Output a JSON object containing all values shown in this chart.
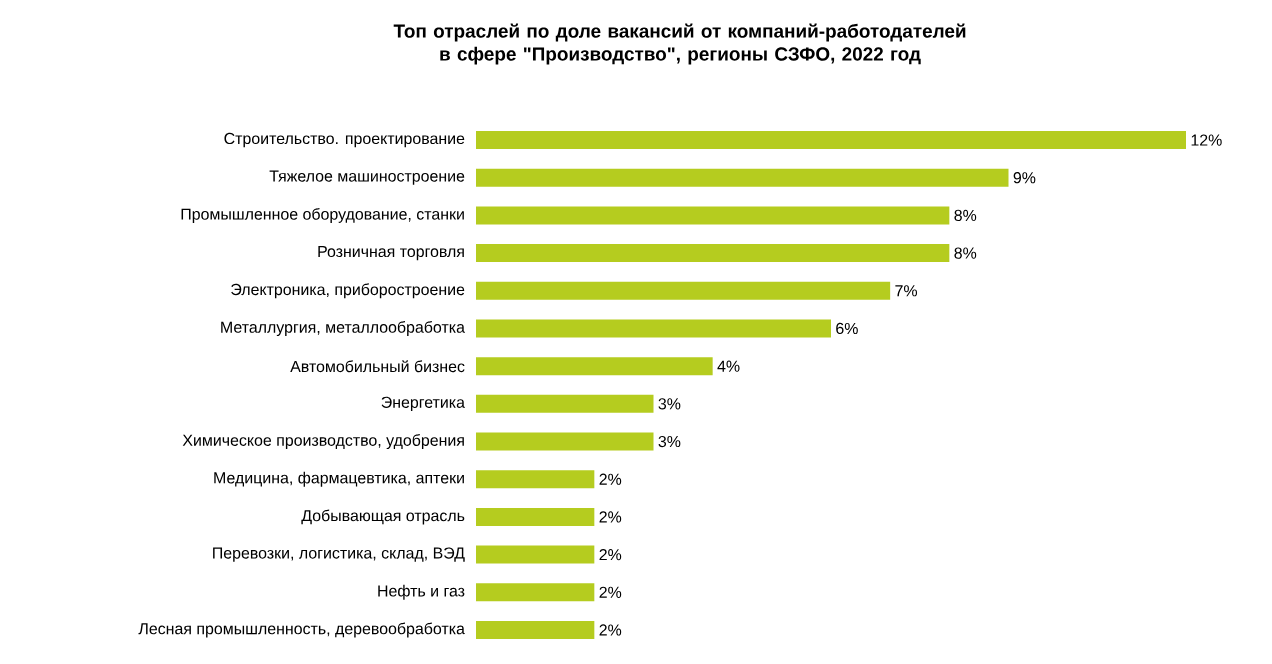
{
  "chart_data": {
    "type": "bar",
    "orientation": "horizontal",
    "title": "Топ отраслей по доле вакансий от компаний-работодателей в сфере \"Производство\", регионы СЗФО, 2022 год",
    "categories": [
      "Строительство. проектирование",
      "Тяжелое машиностроение",
      "Промышленное оборудование, станки",
      "Розничная торговля",
      "Электроника, приборостроение",
      "Металлургия, металлообработка",
      "Автомобильный бизнес",
      "Энергетика",
      "Химическое производство, удобрения",
      "Медицина, фармацевтика, аптеки",
      "Добывающая отрасль",
      "Перевозки, логистика, склад, ВЭД",
      "Нефть и газ",
      "Лесная промышленность, деревообработка"
    ],
    "values": [
      12,
      9,
      8,
      8,
      7,
      6,
      4,
      3,
      3,
      2,
      2,
      2,
      2,
      2
    ],
    "value_labels": [
      "12%",
      "9%",
      "8%",
      "8%",
      "7%",
      "6%",
      "4%",
      "3%",
      "3%",
      "2%",
      "2%",
      "2%",
      "2%",
      "2%"
    ],
    "color": "#b5cc1f"
  }
}
